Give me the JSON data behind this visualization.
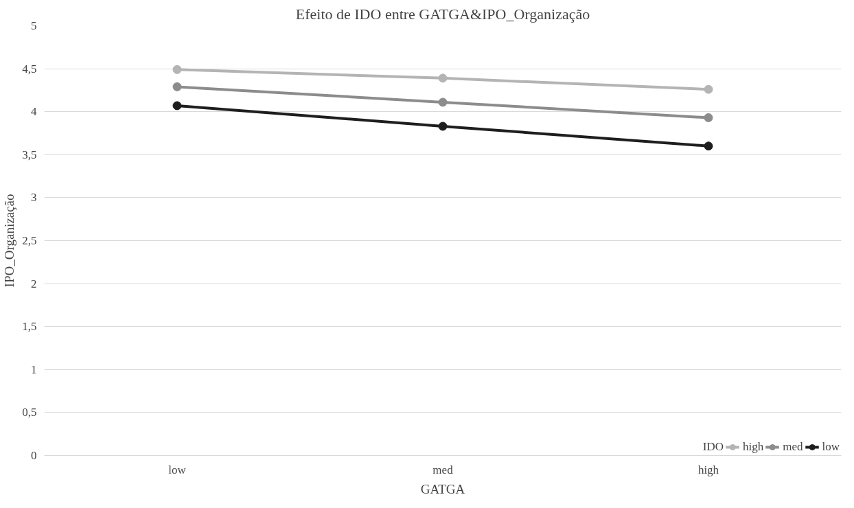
{
  "chart_data": {
    "type": "line",
    "title": "Efeito de IDO entre GATGA&IPO_Organização",
    "xlabel": "GATGA",
    "ylabel": "IPO_Organização",
    "legend_title": "IDO",
    "categories": [
      "low",
      "med",
      "high"
    ],
    "series": [
      {
        "name": "high",
        "color": "#b4b4b4",
        "values": [
          4.49,
          4.39,
          4.26
        ]
      },
      {
        "name": "med",
        "color": "#8c8c8c",
        "values": [
          4.29,
          4.11,
          3.93
        ]
      },
      {
        "name": "low",
        "color": "#1e1e1e",
        "values": [
          4.07,
          3.83,
          3.6
        ]
      }
    ],
    "ylim": [
      0,
      5
    ],
    "yticks": [
      0,
      {
        "value": 0.5,
        "label": "0,5"
      },
      1,
      {
        "value": 1.5,
        "label": "1,5"
      },
      2,
      {
        "value": 2.5,
        "label": "2,5"
      },
      3,
      {
        "value": 3.5,
        "label": "3,5"
      },
      4,
      {
        "value": 4.5,
        "label": "4,5"
      },
      5
    ],
    "grid": "y",
    "legend": "bottom right",
    "marker": "circle",
    "line_style": "solid"
  }
}
